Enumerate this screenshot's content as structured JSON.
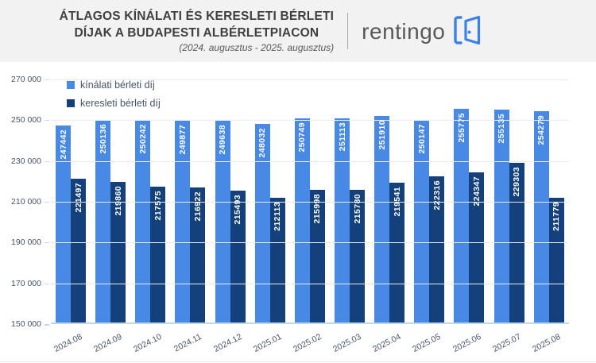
{
  "header": {
    "title_line1": "ÁTLAGOS KÍNÁLATI ÉS KERESLETI BÉRLETI",
    "title_line2": "DÍJAK A BUDAPESTI ALBÉRLETPIACON",
    "subtitle": "(2024. augusztus - 2025. augusztus)",
    "logo": {
      "text": "rentingo",
      "icon": "open-door-icon"
    }
  },
  "colors": {
    "header_bg": "#F2F2F2",
    "title_text": "#3F3F3F",
    "logo_gray": "#595959",
    "logo_blue": "#3B82E8",
    "offer_bar": "#4789E4",
    "demand_bar": "#14407C",
    "axis_text": "#44546A",
    "gridline": "#ECECEC",
    "baseline": "#BDD7EE"
  },
  "chart_data": {
    "type": "bar",
    "title": "Átlagos kínálati és keresleti bérleti díjak a budapesti albérletpiacon",
    "categories": [
      "2024.08",
      "2024.09",
      "2024.10",
      "2024.11",
      "2024.12",
      "2025.01",
      "2025.02",
      "2025.03",
      "2025.04",
      "2025.05",
      "2025.06",
      "2025.07",
      "2025.08"
    ],
    "series": [
      {
        "name": "kínálati bérleti díj",
        "color": "#4789E4",
        "values": [
          247442,
          250136,
          250242,
          249877,
          249638,
          248032,
          250749,
          251113,
          251910,
          250147,
          255775,
          255135,
          254279
        ]
      },
      {
        "name": "keresleti bérleti díj",
        "color": "#14407C",
        "values": [
          221497,
          219860,
          217575,
          216922,
          215493,
          212113,
          215998,
          215780,
          219541,
          222316,
          224347,
          229303,
          211779
        ]
      }
    ],
    "ylim": [
      150000,
      270000
    ],
    "yticks": [
      270000,
      250000,
      230000,
      210000,
      190000,
      170000,
      150000
    ],
    "ytick_labels": [
      "270 000",
      "250 000",
      "230 000",
      "210 000",
      "190 000",
      "170 000",
      "150 000"
    ],
    "grid": true,
    "legend_position": "top-left",
    "value_labels": "inside-top-vertical",
    "x_label_rotation_deg": -27
  }
}
